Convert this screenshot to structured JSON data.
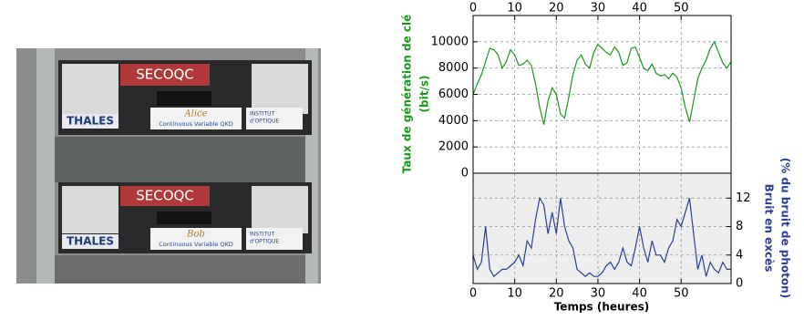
{
  "photo": {
    "brand": "SECOQC",
    "maker": "THALES",
    "unit_top": "Alice",
    "unit_bottom": "Bob",
    "product": "Continuous Variable QKD",
    "institute_line1": "INSTITUT",
    "institute_line2": "d'OPTIQUE"
  },
  "chart_data": [
    {
      "type": "line",
      "ylabel": [
        "Taux de génération de clé",
        "(bit/s)"
      ],
      "x": [
        0,
        1,
        2,
        3,
        4,
        5,
        6,
        7,
        8,
        9,
        10,
        11,
        12,
        13,
        14,
        15,
        16,
        17,
        18,
        19,
        20,
        21,
        22,
        23,
        24,
        25,
        26,
        27,
        28,
        29,
        30,
        31,
        32,
        33,
        34,
        35,
        36,
        37,
        38,
        39,
        40,
        41,
        42,
        43,
        44,
        45,
        46,
        47,
        48,
        49,
        50,
        51,
        52,
        53,
        54,
        55,
        56,
        57,
        58,
        59,
        60,
        61,
        62
      ],
      "series": [
        {
          "name": "Taux de génération de clé",
          "color": "#1a9a1a",
          "values": [
            6000,
            6800,
            7500,
            8500,
            9500,
            9400,
            9000,
            8000,
            8500,
            9400,
            9000,
            8200,
            8300,
            8600,
            8200,
            6800,
            5000,
            3700,
            5500,
            6500,
            6000,
            4500,
            4200,
            5800,
            7500,
            8600,
            9000,
            8300,
            8000,
            9200,
            9800,
            9500,
            9200,
            9000,
            9600,
            9200,
            8200,
            8400,
            9500,
            9600,
            8800,
            8000,
            7800,
            8300,
            7600,
            7400,
            7500,
            7200,
            7600,
            7300,
            6500,
            5000,
            3900,
            5500,
            7200,
            8000,
            8600,
            9500,
            10000,
            9200,
            8400,
            8000,
            8500
          ]
        }
      ],
      "xlim": [
        0,
        62
      ],
      "xticks": [
        0,
        10,
        20,
        30,
        40,
        50
      ],
      "ylim": [
        0,
        12000
      ],
      "yticks": [
        0,
        2000,
        4000,
        6000,
        8000,
        10000
      ],
      "grid": true
    },
    {
      "type": "line",
      "ylabel": [
        "Bruit en excès",
        "(% du bruit de photon)"
      ],
      "xlabel": "Temps (heures)",
      "x": [
        0,
        1,
        2,
        3,
        4,
        5,
        6,
        7,
        8,
        9,
        10,
        11,
        12,
        13,
        14,
        15,
        16,
        17,
        18,
        19,
        20,
        21,
        22,
        23,
        24,
        25,
        26,
        27,
        28,
        29,
        30,
        31,
        32,
        33,
        34,
        35,
        36,
        37,
        38,
        39,
        40,
        41,
        42,
        43,
        44,
        45,
        46,
        47,
        48,
        49,
        50,
        51,
        52,
        53,
        54,
        55,
        56,
        57,
        58,
        59,
        60,
        61,
        62
      ],
      "series": [
        {
          "name": "Bruit en excès",
          "color": "#2b3f95",
          "values": [
            4,
            2,
            3,
            8,
            2,
            1,
            1.5,
            2,
            2,
            2.5,
            3,
            4,
            2.5,
            6,
            5,
            9,
            12,
            11,
            7,
            10,
            7,
            12,
            8,
            6,
            5,
            2,
            1.5,
            1,
            1.5,
            1,
            1,
            1.5,
            2.5,
            3,
            2,
            3,
            5,
            3,
            2.5,
            5,
            8,
            5,
            3,
            6,
            4,
            4,
            3,
            5,
            6,
            9,
            8,
            10,
            12,
            7,
            2,
            4,
            1,
            3,
            2,
            1.5,
            3,
            2,
            2
          ]
        }
      ],
      "xlim": [
        0,
        62
      ],
      "xticks": [
        0,
        10,
        20,
        30,
        40,
        50
      ],
      "ylim": [
        0,
        15.5
      ],
      "yticks": [
        0,
        4,
        8,
        12
      ],
      "grid": true
    }
  ]
}
